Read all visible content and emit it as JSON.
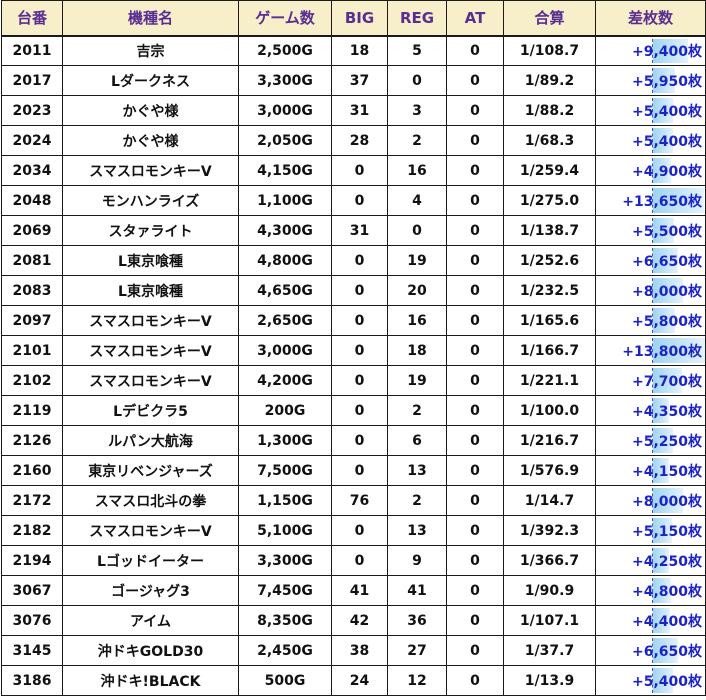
{
  "headers": [
    "台番",
    "機種名",
    "ゲーム数",
    "BIG",
    "REG",
    "AT",
    "合算",
    "差枚数"
  ],
  "colors": {
    "header_bg": "#f6efc9",
    "header_text": "#5a2d91",
    "diff_text": "#1a22c8",
    "bar": "#9fd3f2"
  },
  "rows": [
    {
      "no": "2011",
      "name": "吉宗",
      "games": "2,500G",
      "big": "18",
      "reg": "5",
      "at": "0",
      "total": "1/108.7",
      "diff": "+9,400枚",
      "diff_value": 9400
    },
    {
      "no": "2017",
      "name": "Lダークネス",
      "games": "3,300G",
      "big": "37",
      "reg": "0",
      "at": "0",
      "total": "1/89.2",
      "diff": "+5,950枚",
      "diff_value": 5950
    },
    {
      "no": "2023",
      "name": "かぐや様",
      "games": "3,000G",
      "big": "31",
      "reg": "3",
      "at": "0",
      "total": "1/88.2",
      "diff": "+5,400枚",
      "diff_value": 5400
    },
    {
      "no": "2024",
      "name": "かぐや様",
      "games": "2,050G",
      "big": "28",
      "reg": "2",
      "at": "0",
      "total": "1/68.3",
      "diff": "+5,400枚",
      "diff_value": 5400
    },
    {
      "no": "2034",
      "name": "スマスロモンキーV",
      "games": "4,150G",
      "big": "0",
      "reg": "16",
      "at": "0",
      "total": "1/259.4",
      "diff": "+4,900枚",
      "diff_value": 4900
    },
    {
      "no": "2048",
      "name": "モンハンライズ",
      "games": "1,100G",
      "big": "0",
      "reg": "4",
      "at": "0",
      "total": "1/275.0",
      "diff": "+13,650枚",
      "diff_value": 13650
    },
    {
      "no": "2069",
      "name": "スタァライト",
      "games": "4,300G",
      "big": "31",
      "reg": "0",
      "at": "0",
      "total": "1/138.7",
      "diff": "+5,500枚",
      "diff_value": 5500
    },
    {
      "no": "2081",
      "name": "L東京喰種",
      "games": "4,800G",
      "big": "0",
      "reg": "19",
      "at": "0",
      "total": "1/252.6",
      "diff": "+6,650枚",
      "diff_value": 6650
    },
    {
      "no": "2083",
      "name": "L東京喰種",
      "games": "4,650G",
      "big": "0",
      "reg": "20",
      "at": "0",
      "total": "1/232.5",
      "diff": "+8,000枚",
      "diff_value": 8000
    },
    {
      "no": "2097",
      "name": "スマスロモンキーV",
      "games": "2,650G",
      "big": "0",
      "reg": "16",
      "at": "0",
      "total": "1/165.6",
      "diff": "+5,800枚",
      "diff_value": 5800
    },
    {
      "no": "2101",
      "name": "スマスロモンキーV",
      "games": "3,000G",
      "big": "0",
      "reg": "18",
      "at": "0",
      "total": "1/166.7",
      "diff": "+13,800枚",
      "diff_value": 13800
    },
    {
      "no": "2102",
      "name": "スマスロモンキーV",
      "games": "4,200G",
      "big": "0",
      "reg": "19",
      "at": "0",
      "total": "1/221.1",
      "diff": "+7,700枚",
      "diff_value": 7700
    },
    {
      "no": "2119",
      "name": "Lデビクラ5",
      "games": "200G",
      "big": "0",
      "reg": "2",
      "at": "0",
      "total": "1/100.0",
      "diff": "+4,350枚",
      "diff_value": 4350
    },
    {
      "no": "2126",
      "name": "ルパン大航海",
      "games": "1,300G",
      "big": "0",
      "reg": "6",
      "at": "0",
      "total": "1/216.7",
      "diff": "+5,250枚",
      "diff_value": 5250
    },
    {
      "no": "2160",
      "name": "東京リベンジャーズ",
      "games": "7,500G",
      "big": "0",
      "reg": "13",
      "at": "0",
      "total": "1/576.9",
      "diff": "+4,150枚",
      "diff_value": 4150
    },
    {
      "no": "2172",
      "name": "スマスロ北斗の拳",
      "games": "1,150G",
      "big": "76",
      "reg": "2",
      "at": "0",
      "total": "1/14.7",
      "diff": "+8,000枚",
      "diff_value": 8000
    },
    {
      "no": "2182",
      "name": "スマスロモンキーV",
      "games": "5,100G",
      "big": "0",
      "reg": "13",
      "at": "0",
      "total": "1/392.3",
      "diff": "+5,150枚",
      "diff_value": 5150
    },
    {
      "no": "2194",
      "name": "Lゴッドイーター",
      "games": "3,300G",
      "big": "0",
      "reg": "9",
      "at": "0",
      "total": "1/366.7",
      "diff": "+4,250枚",
      "diff_value": 4250
    },
    {
      "no": "3067",
      "name": "ゴージャグ3",
      "games": "7,450G",
      "big": "41",
      "reg": "41",
      "at": "0",
      "total": "1/90.9",
      "diff": "+4,800枚",
      "diff_value": 4800
    },
    {
      "no": "3076",
      "name": "アイム",
      "games": "8,350G",
      "big": "42",
      "reg": "36",
      "at": "0",
      "total": "1/107.1",
      "diff": "+4,400枚",
      "diff_value": 4400
    },
    {
      "no": "3145",
      "name": "沖ドキGOLD30",
      "games": "2,450G",
      "big": "38",
      "reg": "27",
      "at": "0",
      "total": "1/37.7",
      "diff": "+6,650枚",
      "diff_value": 6650
    },
    {
      "no": "3186",
      "name": "沖ドキ!BLACK",
      "games": "500G",
      "big": "24",
      "reg": "12",
      "at": "0",
      "total": "1/13.9",
      "diff": "+5,400枚",
      "diff_value": 5400
    }
  ]
}
